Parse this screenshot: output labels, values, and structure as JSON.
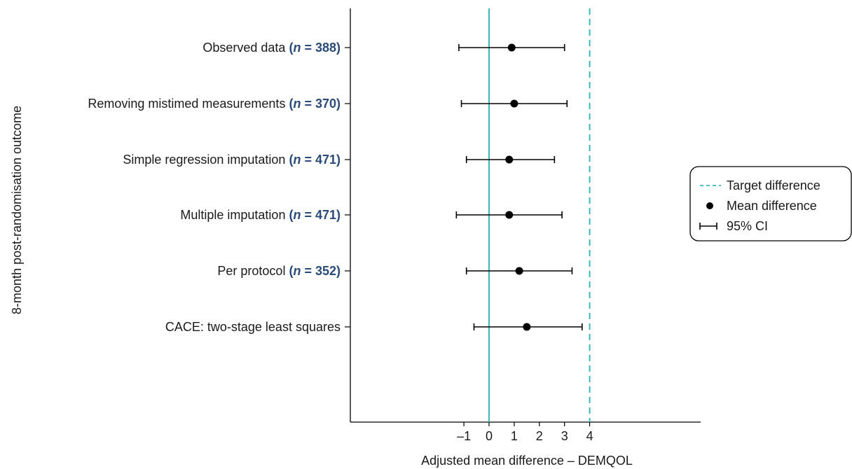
{
  "chart_data": {
    "type": "forest",
    "xlabel": "Adjusted mean difference – DEMQOL",
    "ylabel": "8-month post-randomisation outcome",
    "x_ticks": [
      "–1",
      "0",
      "1",
      "2",
      "3",
      "4"
    ],
    "x_tick_values": [
      -1,
      0,
      1,
      2,
      3,
      4
    ],
    "xlim": [
      -6.5,
      7.5
    ],
    "reference_line": 0,
    "target_difference": 4,
    "colors": {
      "reference": "#3bb8b8",
      "target": "#3bb8b8",
      "n_label": "#2a4a7a",
      "marker": "#000000"
    },
    "rows": [
      {
        "label": "Observed data",
        "n_text": "(n = 388)",
        "n_prefix": "(",
        "n_italic": "n",
        "n_suffix": " = 388)",
        "mean": 0.9,
        "lower": -1.2,
        "upper": 3.0
      },
      {
        "label": "Removing mistimed measurements",
        "n_text": "(n = 370)",
        "n_prefix": "(",
        "n_italic": "n",
        "n_suffix": " = 370)",
        "mean": 1.0,
        "lower": -1.1,
        "upper": 3.1
      },
      {
        "label": "Simple regression imputation",
        "n_text": "(n = 471)",
        "n_prefix": "(",
        "n_italic": "n",
        "n_suffix": " = 471)",
        "mean": 0.8,
        "lower": -0.9,
        "upper": 2.6
      },
      {
        "label": "Multiple imputation",
        "n_text": "(n = 471)",
        "n_prefix": "(",
        "n_italic": "n",
        "n_suffix": " = 471)",
        "mean": 0.8,
        "lower": -1.3,
        "upper": 2.9
      },
      {
        "label": "Per protocol",
        "n_text": "(n = 352)",
        "n_prefix": "(",
        "n_italic": "n",
        "n_suffix": " = 352)",
        "mean": 1.2,
        "lower": -0.9,
        "upper": 3.3
      },
      {
        "label": "CACE: two-stage least squares",
        "n_text": "",
        "n_prefix": "",
        "n_italic": "",
        "n_suffix": "",
        "mean": 1.5,
        "lower": -0.6,
        "upper": 3.7
      }
    ],
    "legend": {
      "position": "right",
      "items": [
        {
          "symbol": "dashed-line",
          "label": "Target difference"
        },
        {
          "symbol": "dot",
          "label": "Mean difference"
        },
        {
          "symbol": "errorbar",
          "label": "95% CI"
        }
      ]
    }
  }
}
